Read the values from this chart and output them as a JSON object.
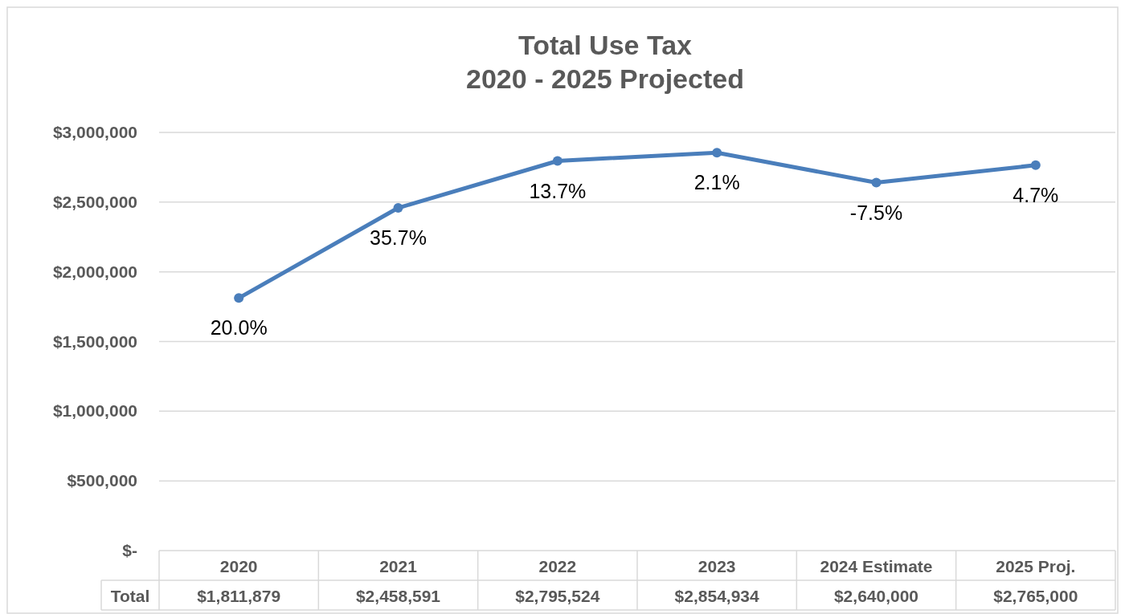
{
  "chart_data": {
    "type": "line",
    "title": "Total Use Tax\n2020 - 2025 Projected",
    "categories": [
      "2020",
      "2021",
      "2022",
      "2023",
      "2024 Estimate",
      "2025 Proj."
    ],
    "series": [
      {
        "name": "Total",
        "color": "#4a7ebb",
        "values": [
          1811879,
          2458591,
          2795524,
          2854934,
          2640000,
          2765000
        ]
      }
    ],
    "ylim": [
      0,
      3000000
    ],
    "yticks": [
      {
        "value": 0,
        "label": "$-"
      },
      {
        "value": 500000,
        "label": "$500,000"
      },
      {
        "value": 1000000,
        "label": "$1,000,000"
      },
      {
        "value": 1500000,
        "label": "$1,500,000"
      },
      {
        "value": 2000000,
        "label": "$2,000,000"
      },
      {
        "value": 2500000,
        "label": "$2,500,000"
      },
      {
        "value": 3000000,
        "label": "$3,000,000"
      }
    ],
    "value_labels": [
      "$1,811,879",
      "$2,458,591",
      "$2,795,524",
      "$2,854,934",
      "$2,640,000",
      "$2,765,000"
    ],
    "annotations": [
      {
        "text": "20.0%",
        "x": "2020",
        "y": 1811879
      },
      {
        "text": "35.7%",
        "x": "2021",
        "y": 2458591
      },
      {
        "text": "13.7%",
        "x": "2022",
        "y": 2795524
      },
      {
        "text": "2.1%",
        "x": "2023",
        "y": 2854934
      },
      {
        "text": "-7.5%",
        "x": "2024 Estimate",
        "y": 2640000
      },
      {
        "text": "4.7%",
        "x": "2025 Proj.",
        "y": 2765000
      }
    ],
    "grid": "y",
    "marker": "circle",
    "line_style": "solid"
  }
}
